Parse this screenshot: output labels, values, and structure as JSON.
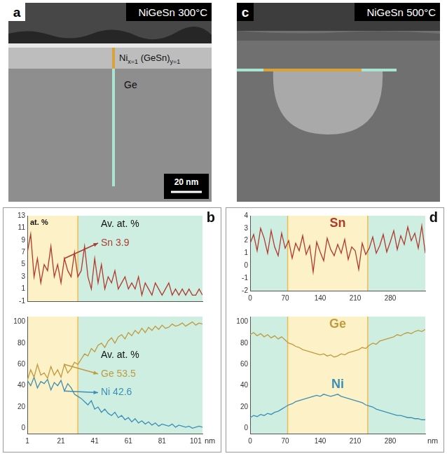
{
  "images": [
    {
      "panel_label": "a",
      "title": "NiGeSn 300°C",
      "layer_label": [
        {
          "text": "Ni",
          "sub": "x=1"
        },
        {
          "text": " (GeSn)",
          "sub": "y=1"
        }
      ],
      "substrate_label": "Ge",
      "scale_bar": "20 nm"
    },
    {
      "panel_label": "c",
      "title": "NiGeSn 500°C"
    }
  ],
  "chart_data": [
    {
      "panel_label": "b",
      "type": "line",
      "y_label": "at. %",
      "grid": false,
      "tick_labels": "y",
      "xlim": [
        1,
        105
      ],
      "ylim": [
        -1,
        13
      ],
      "yticks": [
        -1,
        1,
        3,
        5,
        7,
        9,
        11,
        13
      ],
      "annotations": [
        "Av. at. %"
      ],
      "regions": [
        {
          "start": 1,
          "end": 31,
          "color": "#fdf1c7"
        },
        {
          "start": 31,
          "end": 105,
          "color": "#cdeee1"
        }
      ],
      "x": [
        1,
        3,
        5,
        7,
        9,
        11,
        13,
        15,
        17,
        19,
        21,
        23,
        25,
        27,
        29,
        31,
        33,
        35,
        37,
        39,
        41,
        43,
        45,
        47,
        49,
        51,
        53,
        55,
        57,
        59,
        61,
        63,
        65,
        67,
        69,
        71,
        73,
        75,
        77,
        79,
        81,
        83,
        85,
        87,
        89,
        91,
        93,
        95,
        97,
        99,
        101,
        103,
        105
      ],
      "series": [
        {
          "name": "Sn",
          "color": "#b03a2e",
          "average": 3.9,
          "values": [
            7,
            10,
            3,
            6,
            2,
            5,
            4,
            8,
            3,
            5,
            2,
            6,
            4,
            3,
            7,
            3,
            4,
            8,
            3,
            1,
            6,
            2,
            5,
            1,
            3,
            2,
            4,
            1,
            2,
            3,
            1,
            2,
            1,
            3,
            0,
            2,
            1,
            0,
            2,
            1,
            0,
            1,
            2,
            0,
            1,
            0,
            1,
            0,
            1,
            0,
            0,
            1,
            0
          ]
        }
      ]
    },
    {
      "type": "line",
      "x_label": "nm",
      "grid": false,
      "xlim": [
        1,
        105
      ],
      "xticks": [
        1,
        21,
        41,
        61,
        81,
        101
      ],
      "ylim": [
        -5,
        105
      ],
      "yticks": [
        0,
        20,
        40,
        60,
        80,
        100
      ],
      "annotations": [
        "Av. at. %"
      ],
      "regions": [
        {
          "start": 1,
          "end": 31,
          "color": "#fdf1c7"
        },
        {
          "start": 31,
          "end": 105,
          "color": "#cdeee1"
        }
      ],
      "x": [
        1,
        3,
        5,
        7,
        9,
        11,
        13,
        15,
        17,
        19,
        21,
        23,
        25,
        27,
        29,
        31,
        33,
        35,
        37,
        39,
        41,
        43,
        45,
        47,
        49,
        51,
        53,
        55,
        57,
        59,
        61,
        63,
        65,
        67,
        69,
        71,
        73,
        75,
        77,
        79,
        81,
        83,
        85,
        87,
        89,
        91,
        93,
        95,
        97,
        99,
        101,
        103,
        105
      ],
      "series": [
        {
          "name": "Ge",
          "color": "#c09a3e",
          "average": 53.5,
          "values": [
            45,
            55,
            48,
            60,
            50,
            52,
            47,
            58,
            50,
            55,
            48,
            60,
            52,
            56,
            62,
            60,
            65,
            70,
            68,
            75,
            72,
            78,
            80,
            76,
            82,
            85,
            80,
            86,
            88,
            84,
            90,
            87,
            92,
            89,
            94,
            90,
            95,
            92,
            96,
            93,
            97,
            94,
            95,
            98,
            96,
            97,
            99,
            96,
            98,
            100,
            97,
            99,
            98
          ]
        },
        {
          "name": "Ni",
          "color": "#3d8fb5",
          "average": 42.6,
          "values": [
            45,
            40,
            48,
            38,
            44,
            42,
            46,
            36,
            43,
            40,
            45,
            35,
            42,
            38,
            32,
            30,
            28,
            25,
            22,
            26,
            18,
            20,
            15,
            18,
            14,
            12,
            15,
            10,
            12,
            8,
            10,
            6,
            9,
            5,
            7,
            4,
            6,
            3,
            5,
            2,
            4,
            3,
            2,
            4,
            1,
            3,
            2,
            1,
            2,
            0,
            1,
            2,
            1
          ]
        }
      ]
    },
    {
      "panel_label": "d",
      "type": "line",
      "grid": false,
      "xlim": [
        0,
        350
      ],
      "xticks": [
        0,
        70,
        140,
        210,
        280
      ],
      "ylim": [
        -2,
        4
      ],
      "yticks": [
        -2,
        -1,
        0,
        1,
        2,
        3,
        4
      ],
      "regions": [
        {
          "start": 0,
          "end": 75,
          "color": "#cdeee1"
        },
        {
          "start": 75,
          "end": 235,
          "color": "#fdf1c7"
        },
        {
          "start": 235,
          "end": 350,
          "color": "#cdeee1"
        }
      ],
      "x": [
        0,
        7,
        14,
        21,
        28,
        35,
        42,
        49,
        56,
        63,
        70,
        77,
        84,
        91,
        98,
        105,
        112,
        119,
        126,
        133,
        140,
        147,
        154,
        161,
        168,
        175,
        182,
        189,
        196,
        203,
        210,
        217,
        224,
        231,
        238,
        245,
        252,
        259,
        266,
        273,
        280,
        287,
        294,
        301,
        308,
        315,
        322,
        329,
        336,
        343,
        350
      ],
      "series": [
        {
          "name": "Sn",
          "color": "#b03a2e",
          "values": [
            1.8,
            2.5,
            1.2,
            3.0,
            2.2,
            1.0,
            2.8,
            1.5,
            0.8,
            2.6,
            1.4,
            2.0,
            0.6,
            1.8,
            1.2,
            2.4,
            0.9,
            1.6,
            -0.5,
            1.9,
            1.1,
            0.4,
            2.2,
            1.3,
            0.8,
            1.7,
            1.0,
            2.1,
            0.5,
            1.5,
            1.2,
            -0.3,
            1.8,
            0.9,
            1.4,
            2.3,
            1.0,
            1.6,
            2.5,
            1.1,
            1.9,
            2.8,
            1.3,
            2.4,
            1.7,
            3.1,
            2.0,
            2.6,
            1.4,
            3.2,
            1.0
          ]
        }
      ]
    },
    {
      "type": "line",
      "x_label": "nm",
      "grid": false,
      "xlim": [
        0,
        350
      ],
      "xticks": [
        0,
        70,
        140,
        210,
        280
      ],
      "ylim": [
        -5,
        105
      ],
      "yticks": [
        0,
        20,
        40,
        60,
        80,
        100
      ],
      "regions": [
        {
          "start": 0,
          "end": 75,
          "color": "#cdeee1"
        },
        {
          "start": 75,
          "end": 235,
          "color": "#fdf1c7"
        },
        {
          "start": 235,
          "end": 350,
          "color": "#cdeee1"
        }
      ],
      "x": [
        0,
        7,
        14,
        21,
        28,
        35,
        42,
        49,
        56,
        63,
        70,
        77,
        84,
        91,
        98,
        105,
        112,
        119,
        126,
        133,
        140,
        147,
        154,
        161,
        168,
        175,
        182,
        189,
        196,
        203,
        210,
        217,
        224,
        231,
        238,
        245,
        252,
        259,
        266,
        273,
        280,
        287,
        294,
        301,
        308,
        315,
        322,
        329,
        336,
        343,
        350
      ],
      "series": [
        {
          "name": "Ge",
          "color": "#c09a3e",
          "values": [
            88,
            90,
            87,
            89,
            86,
            88,
            85,
            87,
            84,
            86,
            83,
            80,
            79,
            77,
            76,
            74,
            73,
            72,
            71,
            70,
            69,
            70,
            68,
            69,
            67,
            68,
            70,
            69,
            71,
            72,
            73,
            74,
            76,
            75,
            78,
            80,
            79,
            82,
            83,
            84,
            85,
            86,
            88,
            87,
            89,
            90,
            89,
            91,
            92,
            91,
            93
          ]
        },
        {
          "name": "Ni",
          "color": "#3d8fb5",
          "values": [
            10,
            12,
            11,
            13,
            12,
            14,
            13,
            15,
            16,
            18,
            20,
            22,
            23,
            25,
            26,
            27,
            28,
            29,
            30,
            31,
            30,
            32,
            31,
            30,
            31,
            32,
            30,
            29,
            28,
            27,
            26,
            25,
            24,
            22,
            21,
            20,
            18,
            17,
            16,
            15,
            14,
            13,
            12,
            12,
            11,
            10,
            10,
            9,
            9,
            8,
            8
          ]
        }
      ]
    }
  ]
}
